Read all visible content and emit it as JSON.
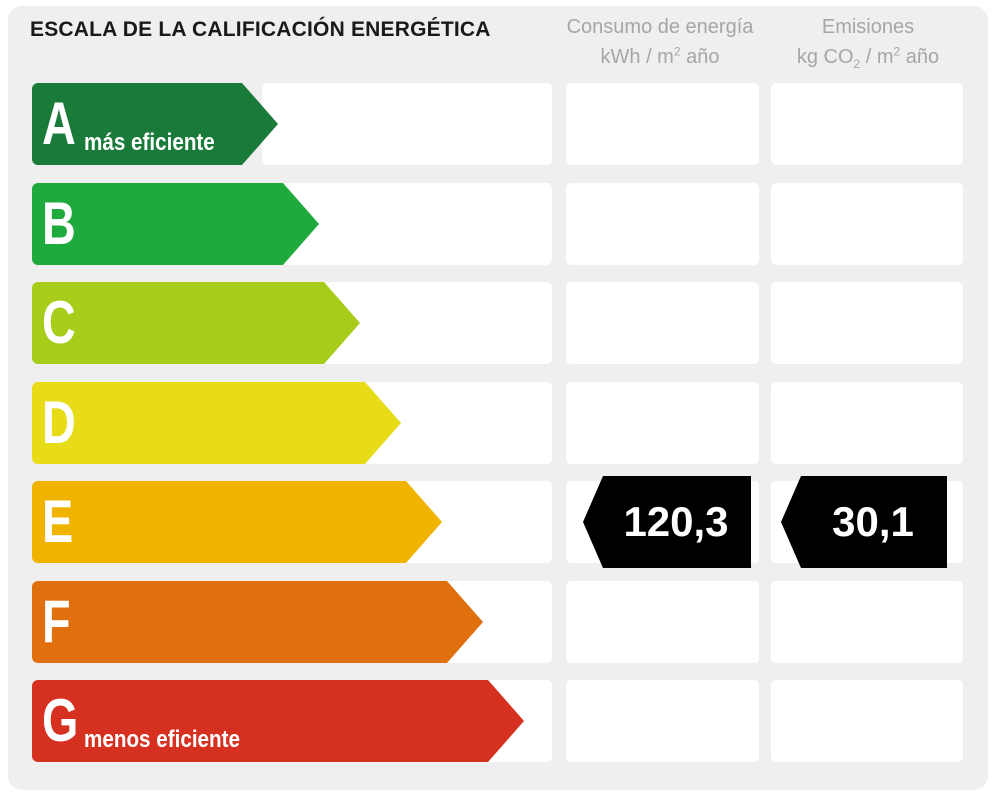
{
  "title": "ESCALA DE LA CALIFICACIÓN ENERGÉTICA",
  "energy_header": {
    "line1": "Consumo de energía",
    "unit_pre": "kWh / m",
    "unit_sup": "2",
    "unit_post": " año"
  },
  "emissions_header": {
    "line1": "Emisiones",
    "unit_pre": "kg CO",
    "unit_sub": "2",
    "unit_mid": " / m",
    "unit_sup": "2",
    "unit_post": " año"
  },
  "ratings": [
    {
      "letter": "A",
      "desc": "más eficiente",
      "color": "#1a7a3a"
    },
    {
      "letter": "B",
      "desc": "",
      "color": "#1faa3d"
    },
    {
      "letter": "C",
      "desc": "",
      "color": "#a8cc1a"
    },
    {
      "letter": "D",
      "desc": "",
      "color": "#e8dc18"
    },
    {
      "letter": "E",
      "desc": "",
      "color": "#f0b400"
    },
    {
      "letter": "F",
      "desc": "",
      "color": "#e0700e"
    },
    {
      "letter": "G",
      "desc": "menos eficiente",
      "color": "#d63020"
    }
  ],
  "current_rating": "E",
  "energy_value": "120,3",
  "emissions_value": "30,1"
}
